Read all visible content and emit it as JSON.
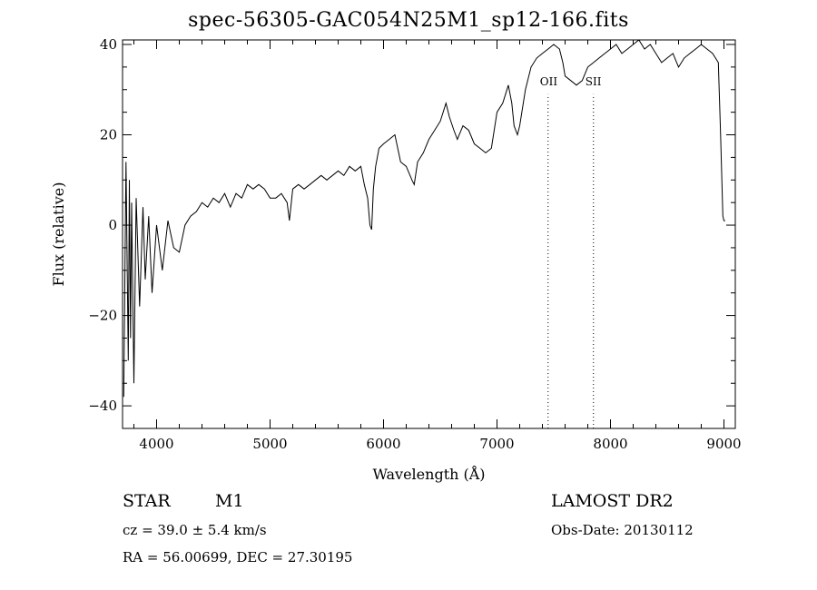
{
  "chart_data": {
    "type": "line",
    "title": "spec-56305-GAC054N25M1_sp12-166.fits",
    "xlabel": "Wavelength (Å)",
    "ylabel": "Flux (relative)",
    "xlim": [
      3700,
      9100
    ],
    "ylim": [
      -45,
      41
    ],
    "x_ticks": [
      4000,
      5000,
      6000,
      7000,
      8000,
      9000
    ],
    "x_tick_labels": [
      "4000",
      "5000",
      "6000",
      "7000",
      "8000",
      "9000"
    ],
    "y_ticks": [
      -40,
      -20,
      0,
      20,
      40
    ],
    "y_tick_labels": [
      "−40",
      "−20",
      "0",
      "20",
      "40"
    ],
    "series": [
      {
        "x": [
          3710,
          3730,
          3750,
          3760,
          3770,
          3780,
          3800,
          3820,
          3850,
          3880,
          3900,
          3930,
          3960,
          4000,
          4050,
          4100,
          4150,
          4200,
          4250,
          4300,
          4350,
          4400,
          4450,
          4500,
          4550,
          4600,
          4650,
          4700,
          4750,
          4800,
          4850,
          4900,
          4950,
          5000,
          5050,
          5100,
          5150,
          5170,
          5200,
          5250,
          5300,
          5350,
          5400,
          5450,
          5500,
          5550,
          5600,
          5650,
          5700,
          5750,
          5800,
          5830,
          5860,
          5880,
          5895,
          5910,
          5930,
          5960,
          6000,
          6050,
          6100,
          6150,
          6200,
          6250,
          6270,
          6300,
          6350,
          6400,
          6450,
          6500,
          6550,
          6580,
          6620,
          6650,
          6700,
          6750,
          6800,
          6850,
          6900,
          6950,
          7000,
          7050,
          7100,
          7130,
          7150,
          7180,
          7200,
          7250,
          7300,
          7350,
          7400,
          7450,
          7500,
          7550,
          7580,
          7600,
          7650,
          7700,
          7750,
          7800,
          7850,
          7900,
          7950,
          8000,
          8050,
          8100,
          8150,
          8200,
          8250,
          8300,
          8350,
          8400,
          8450,
          8500,
          8550,
          8600,
          8650,
          8700,
          8750,
          8800,
          8850,
          8900,
          8950,
          8970,
          8990,
          9000,
          9010
        ],
        "y": [
          -38,
          14,
          -30,
          10,
          -25,
          5,
          -35,
          6,
          -18,
          4,
          -12,
          2,
          -15,
          0,
          -10,
          1,
          -5,
          -6,
          0,
          2,
          3,
          5,
          4,
          6,
          5,
          7,
          4,
          7,
          6,
          9,
          8,
          9,
          8,
          6,
          6,
          7,
          5,
          1,
          8,
          9,
          8,
          9,
          10,
          11,
          10,
          11,
          12,
          11,
          13,
          12,
          13,
          9,
          6,
          0,
          -1,
          8,
          13,
          17,
          18,
          19,
          20,
          14,
          13,
          10,
          9,
          14,
          16,
          19,
          21,
          23,
          27,
          24,
          21,
          19,
          22,
          21,
          18,
          17,
          16,
          17,
          25,
          27,
          31,
          27,
          22,
          20,
          22,
          30,
          35,
          37,
          38,
          39,
          40,
          39,
          36,
          33,
          32,
          31,
          32,
          35,
          36,
          37,
          38,
          39,
          40,
          38,
          39,
          40,
          41,
          39,
          40,
          38,
          36,
          37,
          38,
          35,
          37,
          38,
          39,
          40,
          39,
          38,
          36,
          20,
          2,
          1,
          1
        ]
      }
    ],
    "line_labels": [
      {
        "x": 7450,
        "label": "OII"
      },
      {
        "x": 7850,
        "label": "SII"
      }
    ]
  },
  "info": {
    "object_class": "STAR",
    "subclass": "M1",
    "survey": "LAMOST DR2",
    "cz": "cz = 39.0 ± 5.4 km/s",
    "obs_date": "Obs-Date: 20130112",
    "coords": "RA =  56.00699, DEC =  27.30195"
  }
}
